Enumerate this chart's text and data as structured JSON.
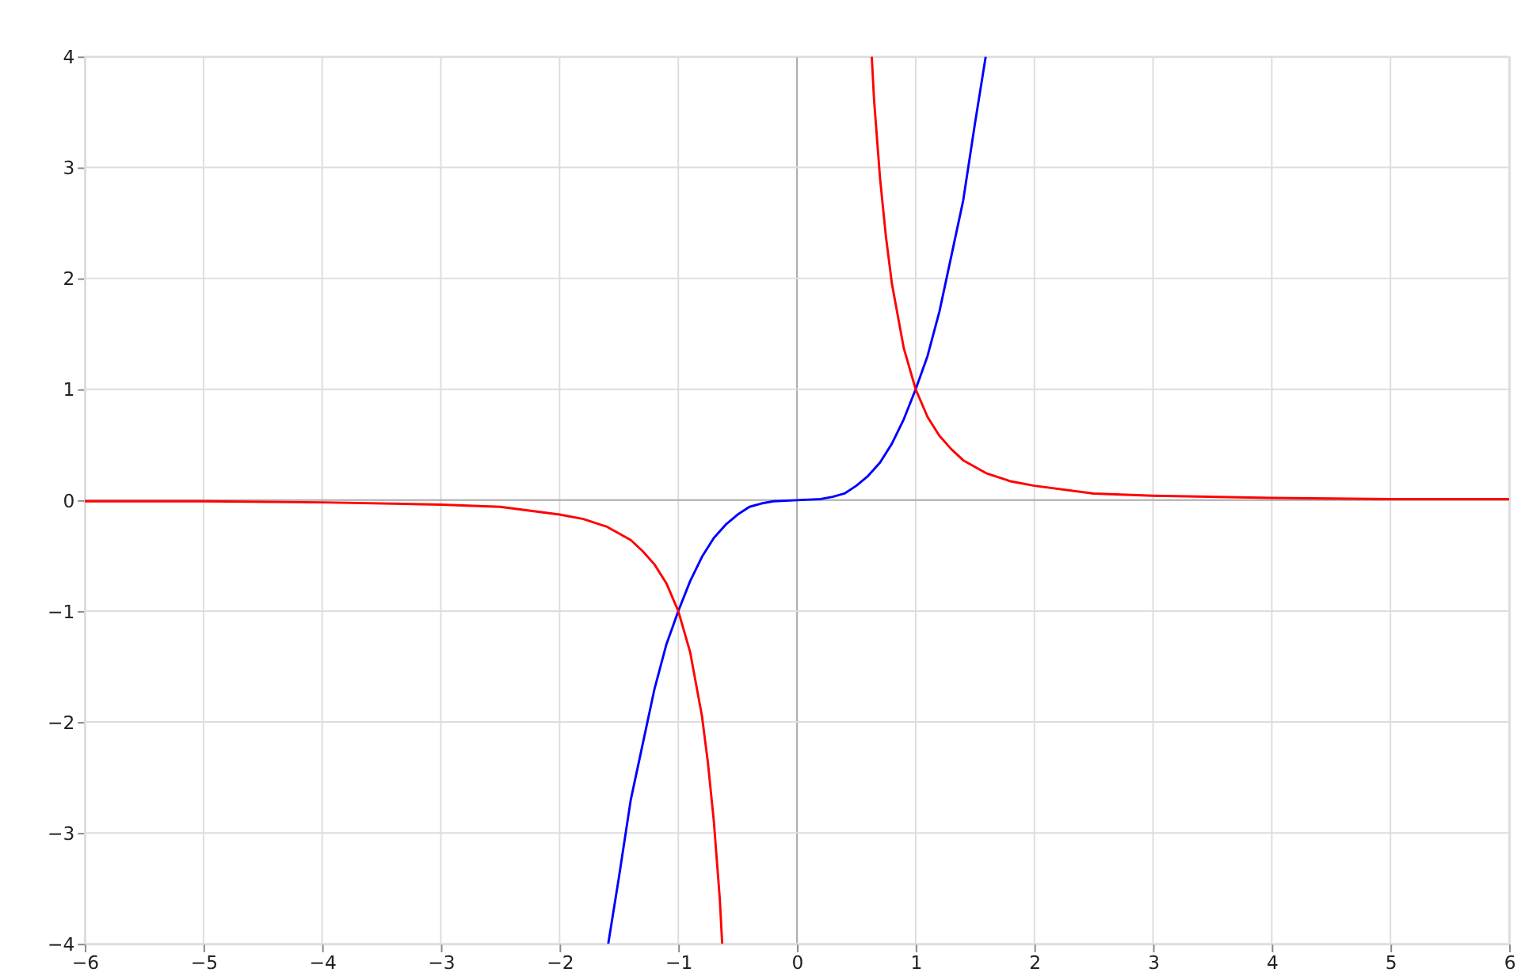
{
  "chart_data": {
    "type": "line",
    "series": [
      {
        "color": "#0000ff",
        "x": [
          -1.59,
          -1.5,
          -1.4,
          -1.3,
          -1.2,
          -1.1,
          -1.0,
          -0.9,
          -0.8,
          -0.7,
          -0.6,
          -0.5,
          -0.4,
          -0.3,
          -0.2,
          0,
          0.2,
          0.3,
          0.4,
          0.5,
          0.6,
          0.7,
          0.8,
          0.9,
          1.0,
          1.1,
          1.2,
          1.3,
          1.4,
          1.5,
          1.59
        ],
        "values": [
          -4,
          -3.4,
          -2.7,
          -2.2,
          -1.7,
          -1.3,
          -1,
          -0.73,
          -0.51,
          -0.34,
          -0.22,
          -0.13,
          -0.06,
          -0.03,
          -0.01,
          0,
          0.01,
          0.03,
          0.06,
          0.13,
          0.22,
          0.34,
          0.51,
          0.73,
          1,
          1.3,
          1.7,
          2.2,
          2.7,
          3.4,
          4
        ]
      },
      {
        "color": "#ff0000",
        "x": [
          -6,
          -5,
          -4,
          -3,
          -2.5,
          -2,
          -1.8,
          -1.6,
          -1.4,
          -1.3,
          -1.2,
          -1.1,
          -1.0,
          -0.9,
          -0.8,
          -0.75,
          -0.7,
          -0.65,
          -0.63,
          0,
          0.63,
          0.65,
          0.7,
          0.75,
          0.8,
          0.9,
          1.0,
          1.1,
          1.2,
          1.3,
          1.4,
          1.6,
          1.8,
          2,
          2.5,
          3,
          4,
          5,
          6
        ],
        "values": [
          -0.01,
          -0.01,
          -0.02,
          -0.04,
          -0.06,
          -0.13,
          -0.17,
          -0.24,
          -0.36,
          -0.46,
          -0.58,
          -0.75,
          -1,
          -1.37,
          -1.95,
          -2.37,
          -2.9,
          -3.6,
          -4,
          null,
          4,
          3.6,
          2.9,
          2.37,
          1.95,
          1.37,
          1,
          0.75,
          0.58,
          0.46,
          0.36,
          0.24,
          0.17,
          0.13,
          0.06,
          0.04,
          0.02,
          0.01,
          0.01
        ]
      }
    ],
    "xlim": [
      -6,
      6
    ],
    "xticks": [
      {
        "value": -6,
        "label": "−6"
      },
      {
        "value": -5,
        "label": "−5"
      },
      {
        "value": -4,
        "label": "−4"
      },
      {
        "value": -3,
        "label": "−3"
      },
      {
        "value": -2,
        "label": "−2"
      },
      {
        "value": -1,
        "label": "−1"
      },
      0,
      1,
      2,
      3,
      4,
      5,
      6
    ],
    "ylim": [
      -4,
      4
    ],
    "yticks": [
      {
        "value": -4,
        "label": "−4"
      },
      {
        "value": -3,
        "label": "−3"
      },
      {
        "value": -2,
        "label": "−2"
      },
      {
        "value": -1,
        "label": "−1"
      },
      0,
      1,
      2,
      3,
      4
    ],
    "grid": true,
    "legend": false,
    "marker": "none",
    "line_style": "solid"
  }
}
